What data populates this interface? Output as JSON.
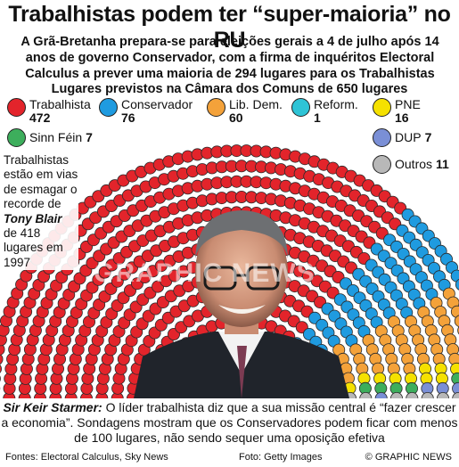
{
  "header": {
    "title": "Trabalhistas podem ter “super-maioria” no RU",
    "subtitle": "A Grã-Bretanha prepara-se para eleições gerais a 4 de julho após 14 anos de governo Conservador, com a firma de inquéritos Electoral Calculus a prever uma maioria de 294 lugares para os Trabalhistas"
  },
  "annotation": {
    "line1": "Trabalhistas estão em vias de esmagar o recorde de",
    "name": "Tony Blair",
    "line2": "de 418 lugares em 1997"
  },
  "caption": {
    "person": "Sir Keir Starmer:",
    "text": " O líder trabalhista diz que a sua missão central é “fazer crescer a economia”. Sondagens mostram que os Conservadores podem ficar com menos de 100 lugares, não sendo sequer uma oposição efetiva"
  },
  "footer": {
    "sources": "Fontes: Electoral Calculus, Sky News",
    "photo": "Foto: Getty Images",
    "brand": "© GRAPHIC NEWS"
  },
  "watermark": "GRAPHIC NEWS",
  "chart_data": {
    "type": "parliament",
    "title": "Lugares previstos na Câmara dos Comuns de 650 lugares",
    "total": 650,
    "series": [
      {
        "name": "Trabalhista",
        "value": 472,
        "color": "#e3242b"
      },
      {
        "name": "Conservador",
        "value": 76,
        "color": "#1f9be0"
      },
      {
        "name": "Lib. Dem.",
        "value": 60,
        "color": "#f4a23a"
      },
      {
        "name": "Reform.",
        "value": 1,
        "color": "#2ec4d6"
      },
      {
        "name": "PNE",
        "value": 16,
        "color": "#f5e100"
      },
      {
        "name": "Sinn Féin",
        "value": 7,
        "color": "#3dae5c"
      },
      {
        "name": "DUP",
        "value": 7,
        "color": "#7a8fd6"
      },
      {
        "name": "Outros",
        "value": 11,
        "color": "#b8b8b8"
      }
    ]
  }
}
